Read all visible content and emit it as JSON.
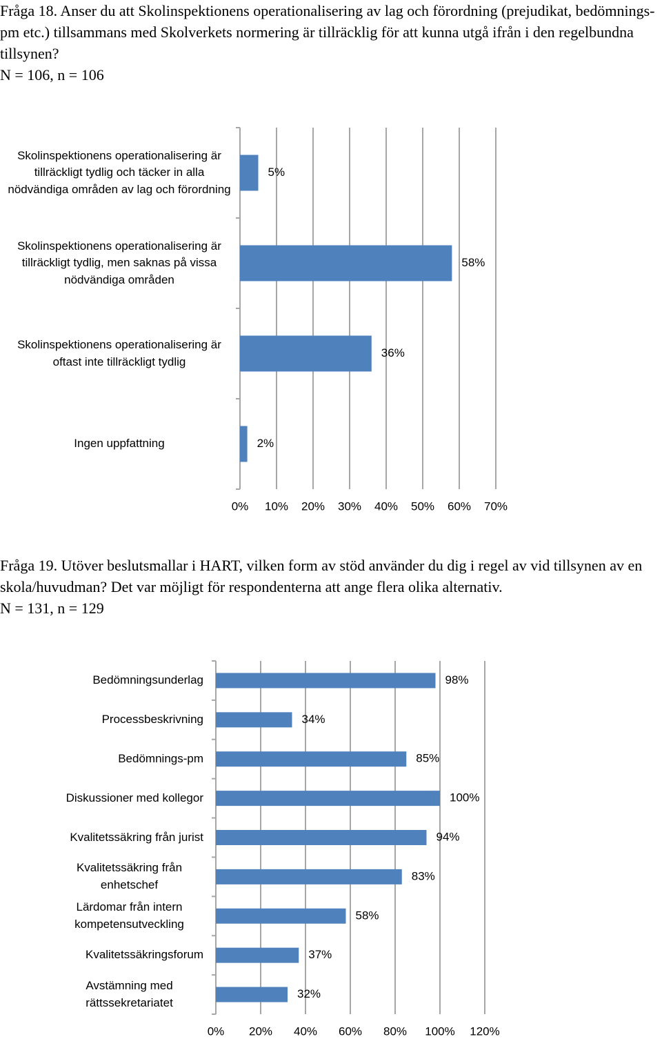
{
  "chart_data": [
    {
      "type": "bar",
      "orientation": "horizontal",
      "title": "Fråga 18. Anser du att Skolinspektionens operationalisering av lag och förordning (prejudikat, bedömnings-pm etc.) tillsammans med Skolverkets normering är tillräcklig för att kunna utgå ifrån i den regelbundna tillsynen?",
      "subtitle": "N = 106, n = 106",
      "categories": [
        "Skolinspektionens operationalisering är tillräckligt tydlig och täcker in alla nödvändiga områden av lag och förordning",
        "Skolinspektionens operationalisering är tillräckligt tydlig, men saknas på vissa nödvändiga områden",
        "Skolinspektionens operationalisering är oftast inte tillräckligt tydlig",
        "Ingen uppfattning"
      ],
      "values": [
        5,
        58,
        36,
        2
      ],
      "value_labels": [
        "5%",
        "58%",
        "36%",
        "2%"
      ],
      "color": "#4f81bd",
      "xlim": [
        0,
        70
      ],
      "xticks": [
        {
          "value": 0,
          "label": "0%"
        },
        {
          "value": 10,
          "label": "10%"
        },
        {
          "value": 20,
          "label": "20%"
        },
        {
          "value": 30,
          "label": "30%"
        },
        {
          "value": 40,
          "label": "40%"
        },
        {
          "value": 50,
          "label": "50%"
        },
        {
          "value": 60,
          "label": "60%"
        },
        {
          "value": 70,
          "label": "70%"
        }
      ],
      "grid": true
    },
    {
      "type": "bar",
      "orientation": "horizontal",
      "title": "Fråga 19. Utöver beslutsmallar i HART, vilken form av stöd använder du dig i regel av vid tillsynen av en skola/huvudman? Det var möjligt för respondenterna att ange flera olika alternativ.",
      "subtitle": "N = 131, n = 129",
      "categories": [
        "Bedömningsunderlag",
        "Processbeskrivning",
        "Bedömnings-pm",
        "Diskussioner med kollegor",
        "Kvalitetssäkring från jurist",
        "Kvalitetssäkring från enhetschef",
        "Lärdomar från intern kompetensutveckling",
        "Kvalitetssäkringsforum",
        "Avstämning med rättssekretariatet"
      ],
      "values": [
        98,
        34,
        85,
        100,
        94,
        83,
        58,
        37,
        32
      ],
      "value_labels": [
        "98%",
        "34%",
        "85%",
        "100%",
        "94%",
        "83%",
        "58%",
        "37%",
        "32%"
      ],
      "color": "#4f81bd",
      "xlim": [
        0,
        120
      ],
      "xticks": [
        {
          "value": 0,
          "label": "0%"
        },
        {
          "value": 20,
          "label": "20%"
        },
        {
          "value": 40,
          "label": "40%"
        },
        {
          "value": 60,
          "label": "60%"
        },
        {
          "value": 80,
          "label": "80%"
        },
        {
          "value": 100,
          "label": "100%"
        },
        {
          "value": 120,
          "label": "120%"
        }
      ],
      "grid": true
    }
  ]
}
